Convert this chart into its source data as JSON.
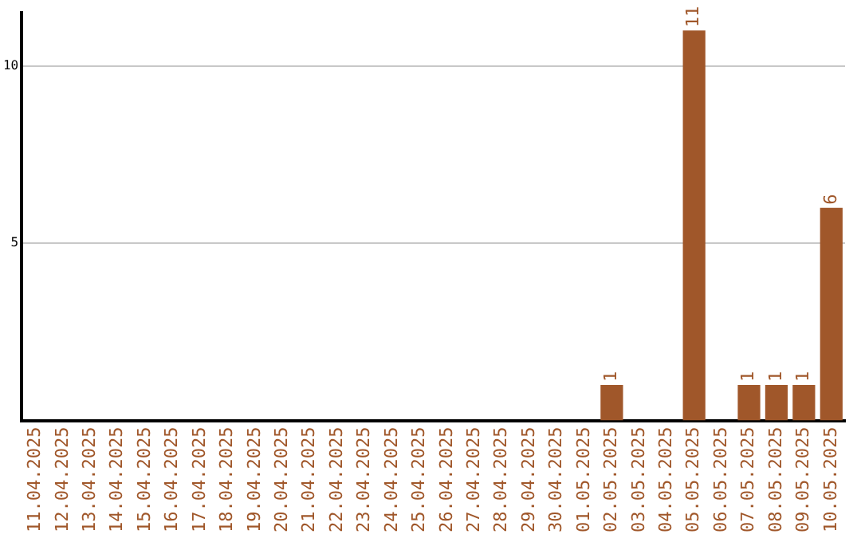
{
  "chart_data": {
    "type": "bar",
    "categories": [
      "11.04.2025",
      "12.04.2025",
      "13.04.2025",
      "14.04.2025",
      "15.04.2025",
      "16.04.2025",
      "17.04.2025",
      "18.04.2025",
      "19.04.2025",
      "20.04.2025",
      "21.04.2025",
      "22.04.2025",
      "23.04.2025",
      "24.04.2025",
      "25.04.2025",
      "26.04.2025",
      "27.04.2025",
      "28.04.2025",
      "29.04.2025",
      "30.04.2025",
      "01.05.2025",
      "02.05.2025",
      "03.05.2025",
      "04.05.2025",
      "05.05.2025",
      "06.05.2025",
      "07.05.2025",
      "08.05.2025",
      "09.05.2025",
      "10.05.2025"
    ],
    "values": [
      0,
      0,
      0,
      0,
      0,
      0,
      0,
      0,
      0,
      0,
      0,
      0,
      0,
      0,
      0,
      0,
      0,
      0,
      0,
      0,
      0,
      1,
      0,
      0,
      11,
      0,
      1,
      1,
      1,
      6
    ],
    "value_labels": [
      null,
      null,
      null,
      null,
      null,
      null,
      null,
      null,
      null,
      null,
      null,
      null,
      null,
      null,
      null,
      null,
      null,
      null,
      null,
      null,
      null,
      "1",
      null,
      null,
      "11",
      null,
      "1",
      "1",
      "1",
      "6"
    ],
    "color": "#a0572a",
    "ylim": [
      0,
      11.5
    ],
    "yticks": [
      5,
      10
    ],
    "grid": "y",
    "legend": false
  }
}
